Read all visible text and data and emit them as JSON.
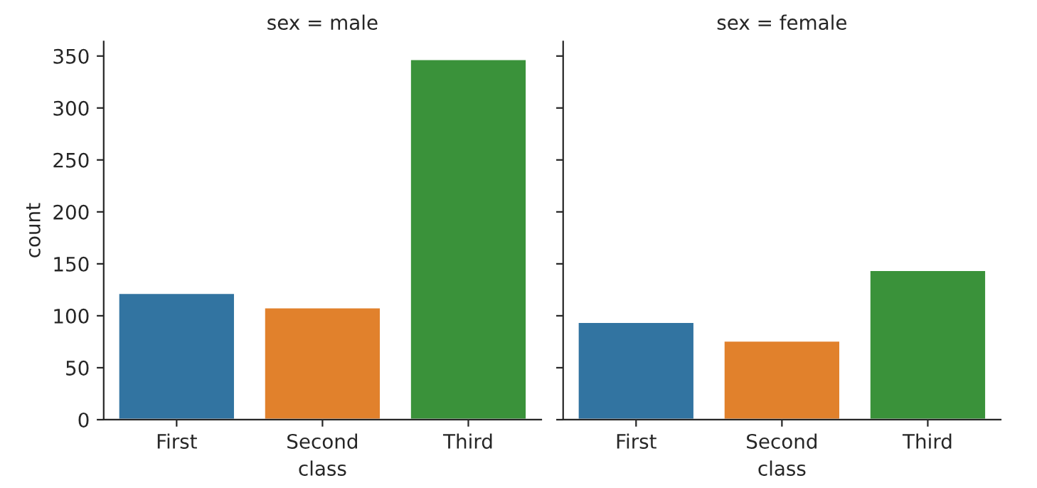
{
  "chart_data": [
    {
      "type": "bar",
      "title": "sex = male",
      "categories": [
        "First",
        "Second",
        "Third"
      ],
      "values": [
        122,
        108,
        347
      ],
      "colors": [
        "#3274a1",
        "#e1812c",
        "#3a923a"
      ],
      "xlabel": "class",
      "ylabel": "count",
      "ylim": [
        0,
        364
      ],
      "yticks": [
        0,
        50,
        100,
        150,
        200,
        250,
        300,
        350
      ]
    },
    {
      "type": "bar",
      "title": "sex = female",
      "categories": [
        "First",
        "Second",
        "Third"
      ],
      "values": [
        94,
        76,
        144
      ],
      "colors": [
        "#3274a1",
        "#e1812c",
        "#3a923a"
      ],
      "xlabel": "class",
      "ylim": [
        0,
        364
      ],
      "yticks": [
        0,
        50,
        100,
        150,
        200,
        250,
        300,
        350
      ],
      "tick_labels": "x"
    }
  ]
}
